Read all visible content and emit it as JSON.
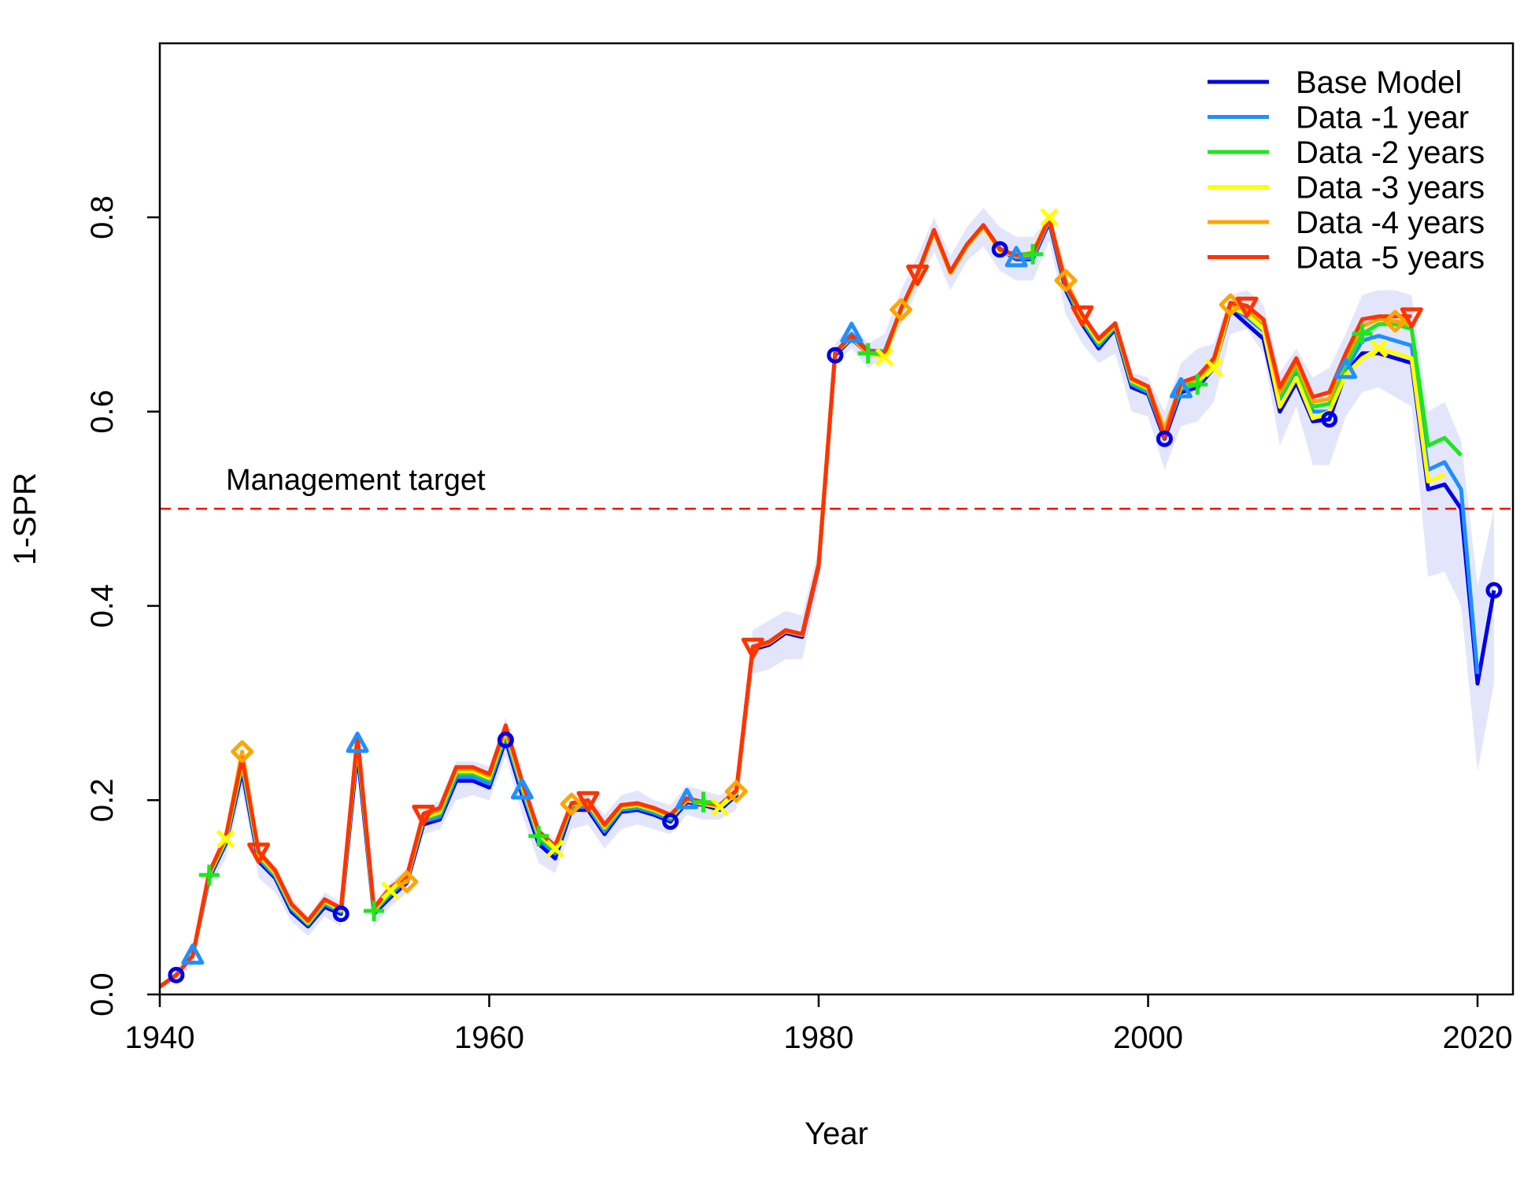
{
  "chart_data": {
    "type": "line",
    "title": "",
    "xlabel": "Year",
    "ylabel": "1-SPR",
    "xlim": [
      1940,
      2022
    ],
    "ylim": [
      0,
      0.98
    ],
    "x_ticks": [
      "1940",
      "1960",
      "1980",
      "2000",
      "2020"
    ],
    "y_ticks": [
      "0.0",
      "0.2",
      "0.4",
      "0.6",
      "0.8"
    ],
    "grid": false,
    "legend_position": "top-right",
    "reference_line": {
      "value": 0.5,
      "label": "Management target",
      "color": "#ff0000",
      "style": "dashed"
    },
    "years": [
      1940,
      1941,
      1942,
      1943,
      1944,
      1945,
      1946,
      1947,
      1948,
      1949,
      1950,
      1951,
      1952,
      1953,
      1954,
      1955,
      1956,
      1957,
      1958,
      1959,
      1960,
      1961,
      1962,
      1963,
      1964,
      1965,
      1966,
      1967,
      1968,
      1969,
      1970,
      1971,
      1972,
      1973,
      1974,
      1975,
      1976,
      1977,
      1978,
      1979,
      1980,
      1981,
      1982,
      1983,
      1984,
      1985,
      1986,
      1987,
      1988,
      1989,
      1990,
      1991,
      1992,
      1993,
      1994,
      1995,
      1996,
      1997,
      1998,
      1999,
      2000,
      2001,
      2002,
      2003,
      2004,
      2005,
      2006,
      2007,
      2008,
      2009,
      2010,
      2011,
      2012,
      2013,
      2014,
      2015,
      2016,
      2017,
      2018,
      2019,
      2020,
      2021
    ],
    "confidence_band": {
      "color": "#e3e6fb",
      "upper": [
        0.01,
        0.025,
        0.05,
        0.13,
        0.17,
        0.25,
        0.15,
        0.13,
        0.1,
        0.08,
        0.105,
        0.095,
        0.27,
        0.095,
        0.115,
        0.13,
        0.19,
        0.2,
        0.24,
        0.24,
        0.235,
        0.285,
        0.225,
        0.17,
        0.16,
        0.2,
        0.205,
        0.185,
        0.205,
        0.21,
        0.2,
        0.195,
        0.215,
        0.21,
        0.205,
        0.215,
        0.375,
        0.385,
        0.395,
        0.39,
        0.46,
        0.67,
        0.69,
        0.67,
        0.68,
        0.725,
        0.76,
        0.8,
        0.76,
        0.79,
        0.81,
        0.79,
        0.78,
        0.78,
        0.8,
        0.73,
        0.7,
        0.68,
        0.69,
        0.64,
        0.635,
        0.6,
        0.65,
        0.665,
        0.67,
        0.72,
        0.725,
        0.71,
        0.64,
        0.665,
        0.635,
        0.645,
        0.68,
        0.72,
        0.725,
        0.725,
        0.72,
        0.6,
        0.61,
        0.57,
        0.42,
        0.5
      ],
      "lower": [
        0.005,
        0.015,
        0.03,
        0.11,
        0.14,
        0.21,
        0.12,
        0.105,
        0.075,
        0.06,
        0.08,
        0.07,
        0.23,
        0.07,
        0.09,
        0.105,
        0.165,
        0.17,
        0.2,
        0.205,
        0.2,
        0.245,
        0.185,
        0.135,
        0.125,
        0.17,
        0.175,
        0.15,
        0.17,
        0.175,
        0.17,
        0.165,
        0.185,
        0.18,
        0.18,
        0.19,
        0.33,
        0.335,
        0.345,
        0.345,
        0.42,
        0.65,
        0.665,
        0.645,
        0.655,
        0.69,
        0.725,
        0.765,
        0.725,
        0.755,
        0.77,
        0.745,
        0.735,
        0.735,
        0.775,
        0.7,
        0.67,
        0.65,
        0.66,
        0.6,
        0.595,
        0.54,
        0.585,
        0.59,
        0.61,
        0.68,
        0.685,
        0.66,
        0.565,
        0.605,
        0.545,
        0.545,
        0.595,
        0.62,
        0.625,
        0.615,
        0.605,
        0.43,
        0.435,
        0.4,
        0.23,
        0.32
      ]
    },
    "series": [
      {
        "name": "Base Model",
        "color": "#0000e6",
        "marker": "circle",
        "values": [
          0.008,
          0.02,
          0.04,
          0.12,
          0.155,
          0.23,
          0.137,
          0.12,
          0.085,
          0.07,
          0.09,
          0.083,
          0.25,
          0.083,
          0.1,
          0.115,
          0.175,
          0.18,
          0.22,
          0.22,
          0.213,
          0.262,
          0.205,
          0.155,
          0.14,
          0.19,
          0.19,
          0.165,
          0.188,
          0.19,
          0.185,
          0.178,
          0.198,
          0.195,
          0.19,
          0.205,
          0.355,
          0.36,
          0.372,
          0.368,
          0.44,
          0.658,
          0.675,
          0.66,
          0.66,
          0.703,
          0.74,
          0.785,
          0.742,
          0.77,
          0.79,
          0.767,
          0.757,
          0.757,
          0.795,
          0.725,
          0.69,
          0.665,
          0.685,
          0.625,
          0.618,
          0.572,
          0.62,
          0.625,
          0.645,
          0.705,
          0.69,
          0.675,
          0.6,
          0.63,
          0.59,
          0.592,
          0.64,
          0.66,
          0.66,
          0.655,
          0.65,
          0.52,
          0.525,
          0.5,
          0.32,
          0.416
        ]
      },
      {
        "name": "Data -1 year",
        "color": "#1e90ff",
        "marker": "triangle-up",
        "values": [
          0.008,
          0.02,
          0.04,
          0.122,
          0.157,
          0.235,
          0.14,
          0.122,
          0.088,
          0.072,
          0.093,
          0.085,
          0.258,
          0.085,
          0.103,
          0.118,
          0.178,
          0.183,
          0.224,
          0.224,
          0.217,
          0.266,
          0.21,
          0.16,
          0.145,
          0.193,
          0.193,
          0.168,
          0.19,
          0.192,
          0.187,
          0.18,
          0.2,
          0.197,
          0.192,
          0.207,
          0.357,
          0.362,
          0.374,
          0.37,
          0.442,
          0.66,
          0.68,
          0.663,
          0.662,
          0.705,
          0.742,
          0.787,
          0.744,
          0.772,
          0.792,
          0.768,
          0.758,
          0.758,
          0.797,
          0.728,
          0.693,
          0.668,
          0.687,
          0.628,
          0.62,
          0.575,
          0.623,
          0.628,
          0.648,
          0.708,
          0.697,
          0.683,
          0.61,
          0.64,
          0.6,
          0.6,
          0.643,
          0.673,
          0.678,
          0.673,
          0.668,
          0.54,
          0.548,
          0.52,
          0.33
        ]
      },
      {
        "name": "Data -2 years",
        "color": "#1ee61e",
        "marker": "plus",
        "values": [
          0.008,
          0.02,
          0.04,
          0.123,
          0.158,
          0.238,
          0.142,
          0.124,
          0.09,
          0.073,
          0.095,
          0.086,
          0.26,
          0.086,
          0.105,
          0.12,
          0.18,
          0.186,
          0.228,
          0.228,
          0.221,
          0.27,
          0.213,
          0.163,
          0.148,
          0.195,
          0.196,
          0.171,
          0.192,
          0.194,
          0.189,
          0.182,
          0.201,
          0.198,
          0.194,
          0.208,
          0.358,
          0.363,
          0.375,
          0.371,
          0.443,
          0.661,
          0.678,
          0.66,
          0.661,
          0.704,
          0.741,
          0.786,
          0.743,
          0.771,
          0.791,
          0.766,
          0.76,
          0.762,
          0.798,
          0.73,
          0.695,
          0.67,
          0.688,
          0.63,
          0.622,
          0.578,
          0.625,
          0.628,
          0.65,
          0.71,
          0.703,
          0.688,
          0.615,
          0.645,
          0.605,
          0.608,
          0.648,
          0.68,
          0.69,
          0.69,
          0.685,
          0.565,
          0.573,
          0.555
        ]
      },
      {
        "name": "Data -3 years",
        "color": "#ffff00",
        "marker": "cross",
        "values": [
          0.008,
          0.02,
          0.04,
          0.124,
          0.16,
          0.24,
          0.144,
          0.125,
          0.091,
          0.074,
          0.096,
          0.087,
          0.262,
          0.087,
          0.107,
          0.121,
          0.182,
          0.188,
          0.23,
          0.23,
          0.223,
          0.272,
          0.215,
          0.165,
          0.15,
          0.196,
          0.197,
          0.172,
          0.193,
          0.195,
          0.19,
          0.183,
          0.2,
          0.196,
          0.193,
          0.207,
          0.357,
          0.362,
          0.374,
          0.37,
          0.442,
          0.66,
          0.676,
          0.66,
          0.656,
          0.703,
          0.74,
          0.785,
          0.742,
          0.77,
          0.79,
          0.765,
          0.76,
          0.765,
          0.8,
          0.732,
          0.697,
          0.672,
          0.689,
          0.632,
          0.624,
          0.58,
          0.627,
          0.632,
          0.645,
          0.708,
          0.7,
          0.685,
          0.605,
          0.635,
          0.593,
          0.6,
          0.638,
          0.655,
          0.665,
          0.66,
          0.655,
          0.528,
          0.535
        ]
      },
      {
        "name": "Data -4 years",
        "color": "#ffa500",
        "marker": "diamond",
        "values": [
          0.008,
          0.02,
          0.04,
          0.125,
          0.161,
          0.25,
          0.145,
          0.126,
          0.092,
          0.075,
          0.097,
          0.088,
          0.264,
          0.088,
          0.109,
          0.116,
          0.184,
          0.19,
          0.232,
          0.232,
          0.225,
          0.274,
          0.217,
          0.167,
          0.152,
          0.196,
          0.198,
          0.173,
          0.194,
          0.196,
          0.191,
          0.184,
          0.201,
          0.197,
          0.194,
          0.209,
          0.357,
          0.362,
          0.374,
          0.37,
          0.442,
          0.66,
          0.677,
          0.66,
          0.658,
          0.705,
          0.741,
          0.786,
          0.743,
          0.771,
          0.791,
          0.766,
          0.76,
          0.762,
          0.798,
          0.735,
          0.699,
          0.674,
          0.69,
          0.633,
          0.625,
          0.582,
          0.628,
          0.634,
          0.652,
          0.71,
          0.705,
          0.692,
          0.62,
          0.65,
          0.61,
          0.613,
          0.655,
          0.688,
          0.695,
          0.693,
          0.69
        ]
      },
      {
        "name": "Data -5 years",
        "color": "#ff3300",
        "marker": "triangle-down",
        "values": [
          0.008,
          0.02,
          0.04,
          0.126,
          0.162,
          0.243,
          0.147,
          0.128,
          0.093,
          0.076,
          0.098,
          0.089,
          0.266,
          0.089,
          0.11,
          0.122,
          0.186,
          0.192,
          0.234,
          0.234,
          0.227,
          0.277,
          0.219,
          0.168,
          0.153,
          0.197,
          0.2,
          0.175,
          0.195,
          0.197,
          0.192,
          0.185,
          0.202,
          0.198,
          0.195,
          0.21,
          0.358,
          0.363,
          0.375,
          0.371,
          0.443,
          0.661,
          0.678,
          0.662,
          0.66,
          0.706,
          0.742,
          0.787,
          0.744,
          0.772,
          0.792,
          0.767,
          0.761,
          0.763,
          0.799,
          0.73,
          0.7,
          0.675,
          0.691,
          0.634,
          0.626,
          0.573,
          0.63,
          0.636,
          0.655,
          0.712,
          0.709,
          0.695,
          0.625,
          0.655,
          0.615,
          0.62,
          0.66,
          0.695,
          0.698,
          0.698,
          0.698
        ]
      }
    ],
    "markers": [
      {
        "series": 0,
        "years": [
          1941,
          1951,
          1961,
          1971,
          1981,
          1991,
          2001,
          2011,
          2021
        ]
      },
      {
        "series": 1,
        "years": [
          1942,
          1952,
          1962,
          1972,
          1982,
          1992,
          2002,
          2012
        ]
      },
      {
        "series": 2,
        "years": [
          1943,
          1953,
          1963,
          1973,
          1983,
          1993,
          2003,
          2013
        ]
      },
      {
        "series": 3,
        "years": [
          1944,
          1954,
          1964,
          1974,
          1984,
          1994,
          2004,
          2014
        ]
      },
      {
        "series": 4,
        "years": [
          1945,
          1955,
          1965,
          1975,
          1985,
          1995,
          2005,
          2015
        ]
      },
      {
        "series": 5,
        "years": [
          1946,
          1956,
          1966,
          1976,
          1986,
          1996,
          2006,
          2016
        ]
      }
    ]
  }
}
